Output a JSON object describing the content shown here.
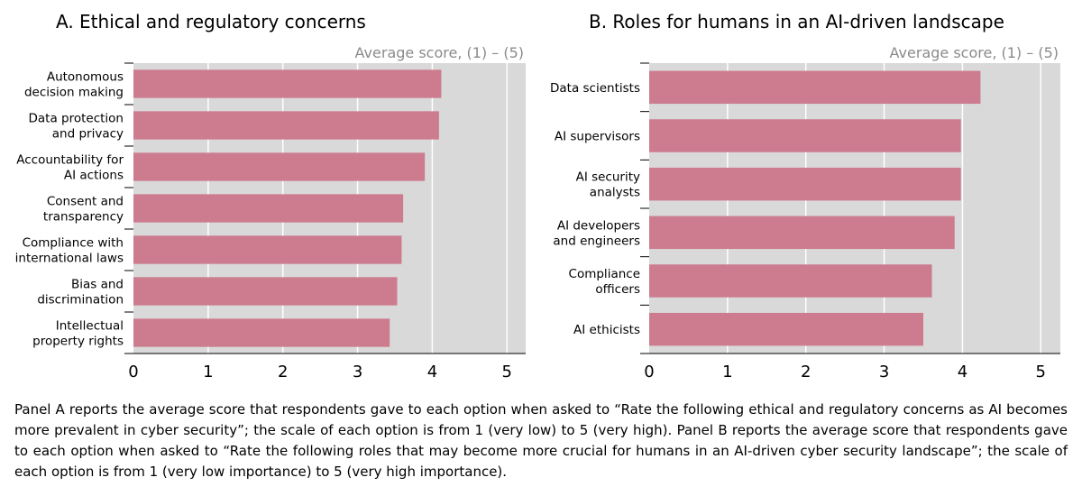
{
  "chart_data": [
    {
      "type": "bar",
      "orientation": "horizontal",
      "title": "A. Ethical and regulatory concerns",
      "unit_label": "Average score, (1) – (5)",
      "categories": [
        [
          "Autonomous",
          "decision making"
        ],
        [
          "Data protection",
          "and privacy"
        ],
        [
          "Accountability for",
          "AI actions"
        ],
        [
          "Consent and",
          "transparency"
        ],
        [
          "Compliance with",
          "international laws"
        ],
        [
          "Bias and",
          "discrimination"
        ],
        [
          "Intellectual",
          "property rights"
        ]
      ],
      "values": [
        4.12,
        4.09,
        3.9,
        3.61,
        3.59,
        3.53,
        3.43
      ],
      "xlim": [
        0,
        5.25
      ],
      "xticks": [
        "0",
        "1",
        "2",
        "3",
        "4",
        "5"
      ],
      "grid": "vertical",
      "bar_color": "#cd7b8f",
      "plot_bg": "#d9d9d9"
    },
    {
      "type": "bar",
      "orientation": "horizontal",
      "title": "B. Roles for humans in an AI-driven landscape",
      "unit_label": "Average score, (1) – (5)",
      "categories": [
        [
          "Data scientists"
        ],
        [
          "AI supervisors"
        ],
        [
          "AI security",
          "analysts"
        ],
        [
          "AI developers",
          "and engineers"
        ],
        [
          "Compliance",
          "officers"
        ],
        [
          "AI ethicists"
        ]
      ],
      "values": [
        4.23,
        3.98,
        3.98,
        3.9,
        3.61,
        3.5
      ],
      "xlim": [
        0,
        5.25
      ],
      "xticks": [
        "0",
        "1",
        "2",
        "3",
        "4",
        "5"
      ],
      "grid": "vertical",
      "bar_color": "#cd7b8f",
      "plot_bg": "#d9d9d9"
    }
  ],
  "caption": "Panel A reports the average score that respondents gave to each option when asked to “Rate the following ethical and regulatory concerns as AI becomes more prevalent in cyber security”; the scale of each option is from 1 (very low) to 5 (very high). Panel B reports the average score that respondents gave to each option when asked to “Rate the following roles that may become more crucial for humans in an AI-driven cyber security landscape”; the scale of each option is from 1 (very low importance) to 5 (very high importance)."
}
